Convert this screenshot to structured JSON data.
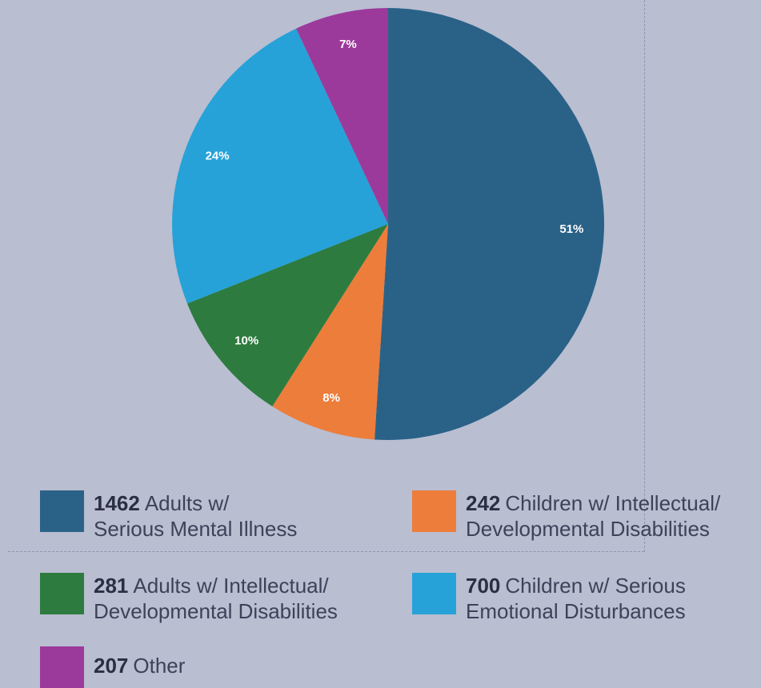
{
  "chart_data": {
    "type": "pie",
    "slices": [
      {
        "label": "Adults w/ Serious Mental Illness",
        "value": 51,
        "display": "51%",
        "color": "#2a6287"
      },
      {
        "label": "Children w/ Intellectual/ Developmental Disabilities",
        "value": 8,
        "display": "8%",
        "color": "#ed7d3b"
      },
      {
        "label": "Adults w/ Intellectual/ Developmental Disabilities",
        "value": 10,
        "display": "10%",
        "color": "#2d7b3f"
      },
      {
        "label": "Children w/ Serious Emotional Disturbances",
        "value": 24,
        "display": "24%",
        "color": "#26a2d8"
      },
      {
        "label": "Other",
        "value": 7,
        "display": "7%",
        "color": "#9c3a9b"
      }
    ]
  },
  "legend": [
    {
      "count": "1462",
      "line1": "Adults w/",
      "line2": "Serious Mental Illness",
      "color": "#2a6287"
    },
    {
      "count": "242",
      "line1": "Children w/ Intellectual/",
      "line2": "Developmental Disabilities",
      "color": "#ed7d3b"
    },
    {
      "count": "281",
      "line1": "Adults w/ Intellectual/",
      "line2": "Developmental Disabilities",
      "color": "#2d7b3f"
    },
    {
      "count": "700",
      "line1": "Children w/ Serious",
      "line2": "Emotional Disturbances",
      "color": "#26a2d8"
    },
    {
      "count": "207",
      "line1": "Other",
      "line2": "",
      "color": "#9c3a9b"
    }
  ]
}
